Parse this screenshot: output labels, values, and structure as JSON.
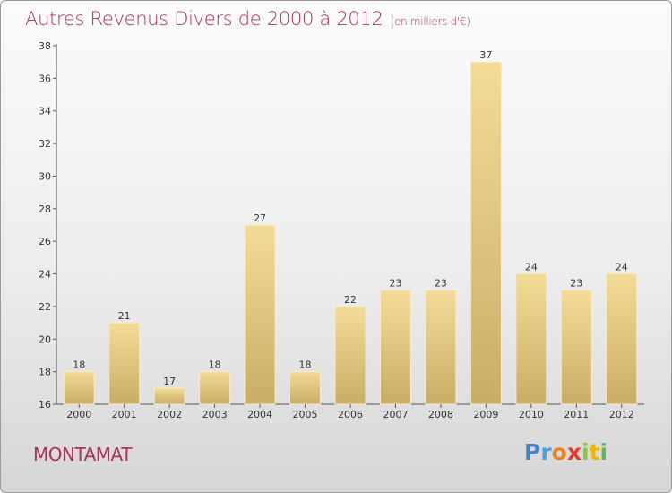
{
  "header": {
    "title": "Autres Revenus Divers de 2000 à 2012",
    "unit": "(en milliers d'€)"
  },
  "footer": {
    "place": "MONTAMAT",
    "logo": "Proxiti"
  },
  "colors": {
    "title": "#b0305a",
    "bar_light": "#f3dc98",
    "bar_dark": "#c9ad66"
  },
  "chart_data": {
    "type": "bar",
    "title": "Autres Revenus Divers de 2000 à 2012",
    "subtitle": "(en milliers d'€)",
    "categories": [
      "2000",
      "2001",
      "2002",
      "2003",
      "2004",
      "2005",
      "2006",
      "2007",
      "2008",
      "2009",
      "2010",
      "2011",
      "2012"
    ],
    "values": [
      18,
      21,
      17,
      18,
      27,
      18,
      22,
      23,
      23,
      37,
      24,
      23,
      24
    ],
    "ylim": [
      16,
      38
    ],
    "yticks": [
      16,
      18,
      20,
      22,
      24,
      26,
      28,
      30,
      32,
      34,
      36,
      38
    ],
    "grid": false,
    "legend": "none"
  }
}
